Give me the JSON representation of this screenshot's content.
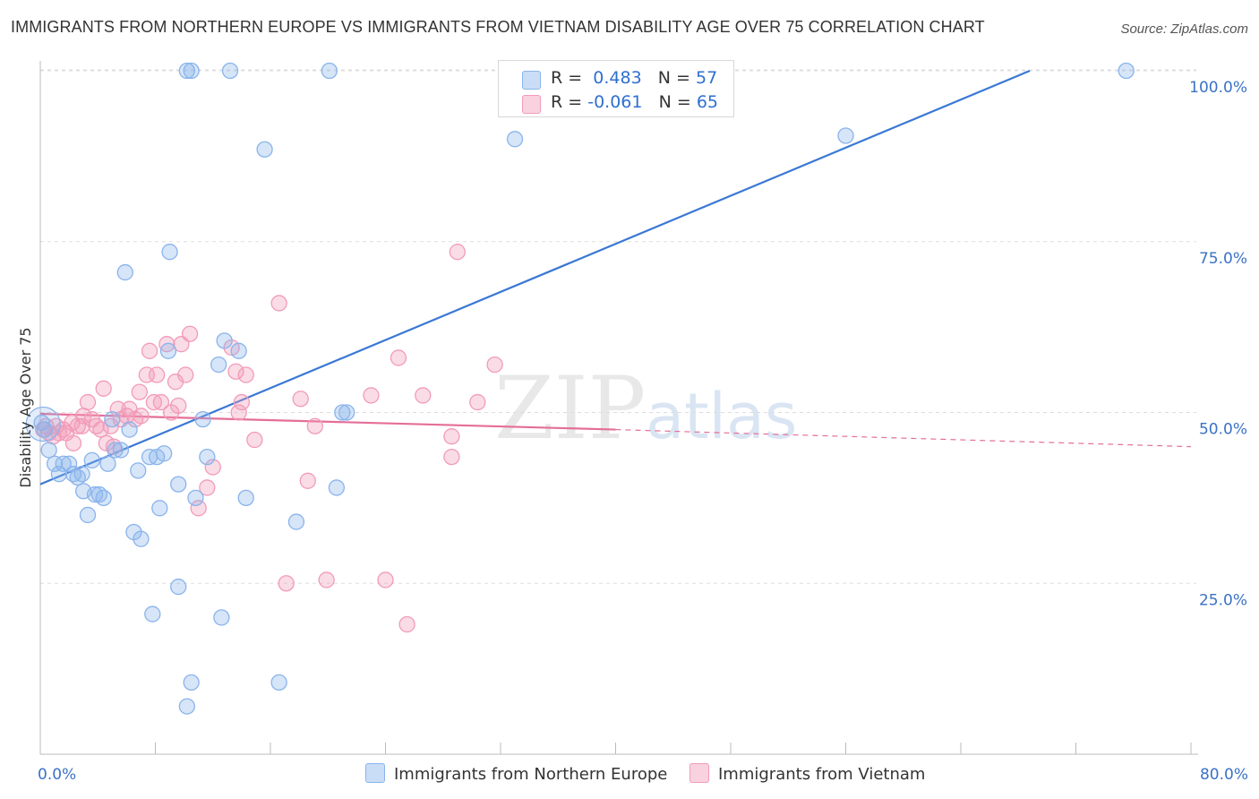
{
  "header": {
    "title": "IMMIGRANTS FROM NORTHERN EUROPE VS IMMIGRANTS FROM VIETNAM DISABILITY AGE OVER 75 CORRELATION CHART",
    "source": "Source: ZipAtlas.com"
  },
  "watermark": {
    "zip": "ZIP",
    "atlas": "atlas"
  },
  "legend": {
    "r_label": "R =",
    "n_label": "N =",
    "series": [
      {
        "name": "Immigrants from Northern Europe",
        "r": "0.483",
        "n": "57",
        "color": "#8ab4ec",
        "fill": "rgba(138,180,236,0.35)"
      },
      {
        "name": "Immigrants from Vietnam",
        "r": "-0.061",
        "n": "65",
        "color": "#f29bb8",
        "fill": "rgba(242,155,184,0.35)"
      }
    ]
  },
  "chart_data": {
    "type": "scatter",
    "title": "IMMIGRANTS FROM NORTHERN EUROPE VS IMMIGRANTS FROM VIETNAM DISABILITY AGE OVER 75 CORRELATION CHART",
    "xlabel": "",
    "ylabel": "Disability Age Over 75",
    "xlim": [
      0,
      80
    ],
    "ylim": [
      0,
      102
    ],
    "x_tick_labels": [
      "0.0%",
      "80.0%"
    ],
    "y_ticks": [
      25,
      50,
      75,
      100
    ],
    "y_tick_labels": [
      "25.0%",
      "50.0%",
      "75.0%",
      "100.0%"
    ],
    "grid": true,
    "series": [
      {
        "name": "Immigrants from Northern Europe",
        "color": "#3a78d4",
        "trend": {
          "x": [
            0,
            68.8
          ],
          "y": [
            39.5,
            100
          ]
        },
        "points": [
          [
            0.3,
            47.5
          ],
          [
            0.6,
            44.5
          ],
          [
            1.0,
            42.5
          ],
          [
            1.3,
            41
          ],
          [
            1.6,
            42.5
          ],
          [
            2.0,
            42.5
          ],
          [
            2.3,
            41
          ],
          [
            2.6,
            40.5
          ],
          [
            2.9,
            41
          ],
          [
            3.0,
            38.5
          ],
          [
            3.3,
            35
          ],
          [
            3.6,
            43
          ],
          [
            3.8,
            38
          ],
          [
            4.1,
            38
          ],
          [
            4.4,
            37.5
          ],
          [
            4.7,
            42.5
          ],
          [
            5.0,
            49
          ],
          [
            5.2,
            44.5
          ],
          [
            5.6,
            44.5
          ],
          [
            5.9,
            70.5
          ],
          [
            6.2,
            47.5
          ],
          [
            6.5,
            32.5
          ],
          [
            6.8,
            41.5
          ],
          [
            7.0,
            31.5
          ],
          [
            7.6,
            43.5
          ],
          [
            7.8,
            20.5
          ],
          [
            8.1,
            43.5
          ],
          [
            8.3,
            36
          ],
          [
            8.6,
            44
          ],
          [
            8.9,
            59
          ],
          [
            9.0,
            73.5
          ],
          [
            9.6,
            39.5
          ],
          [
            9.6,
            24.5
          ],
          [
            10.2,
            7
          ],
          [
            10.2,
            100
          ],
          [
            10.5,
            100
          ],
          [
            10.5,
            10.5
          ],
          [
            10.8,
            37.5
          ],
          [
            11.3,
            49
          ],
          [
            11.6,
            43.5
          ],
          [
            12.4,
            57
          ],
          [
            12.6,
            20
          ],
          [
            12.8,
            60.5
          ],
          [
            13.2,
            100
          ],
          [
            13.8,
            59
          ],
          [
            14.3,
            37.5
          ],
          [
            15.6,
            88.5
          ],
          [
            16.6,
            10.5
          ],
          [
            17.8,
            34
          ],
          [
            20.1,
            100
          ],
          [
            20.6,
            39
          ],
          [
            21.0,
            50
          ],
          [
            21.3,
            50
          ],
          [
            33.0,
            90
          ],
          [
            56.0,
            90.5
          ],
          [
            75.5,
            100
          ],
          [
            0.1,
            48.5
          ]
        ]
      },
      {
        "name": "Immigrants from Vietnam",
        "color": "#e56e98",
        "trend_solid": {
          "x": [
            0,
            40
          ],
          "y": [
            49.8,
            47.5
          ]
        },
        "trend_dashed": {
          "x": [
            40,
            80
          ],
          "y": [
            47.5,
            45
          ]
        },
        "points": [
          [
            0.2,
            47.5
          ],
          [
            0.4,
            48
          ],
          [
            0.6,
            47
          ],
          [
            0.9,
            46.5
          ],
          [
            1.1,
            48
          ],
          [
            1.3,
            47
          ],
          [
            1.6,
            47.5
          ],
          [
            1.8,
            47
          ],
          [
            2.2,
            48.5
          ],
          [
            2.3,
            45.5
          ],
          [
            2.6,
            48
          ],
          [
            2.9,
            48
          ],
          [
            3.0,
            49.5
          ],
          [
            3.3,
            51.5
          ],
          [
            3.6,
            49
          ],
          [
            3.9,
            48
          ],
          [
            4.2,
            47.5
          ],
          [
            4.4,
            53.5
          ],
          [
            4.6,
            45.5
          ],
          [
            4.9,
            48
          ],
          [
            5.1,
            45
          ],
          [
            5.4,
            50.5
          ],
          [
            5.6,
            49
          ],
          [
            6.0,
            49.5
          ],
          [
            6.2,
            50.5
          ],
          [
            6.6,
            49
          ],
          [
            6.9,
            53
          ],
          [
            7.0,
            49.5
          ],
          [
            7.4,
            55.5
          ],
          [
            7.6,
            59
          ],
          [
            7.9,
            51.5
          ],
          [
            8.1,
            55.5
          ],
          [
            8.4,
            51.5
          ],
          [
            8.8,
            60
          ],
          [
            9.1,
            50
          ],
          [
            9.4,
            54.5
          ],
          [
            9.6,
            51
          ],
          [
            9.8,
            60
          ],
          [
            10.1,
            55.5
          ],
          [
            10.4,
            61.5
          ],
          [
            11.0,
            36
          ],
          [
            11.6,
            39
          ],
          [
            12.0,
            42
          ],
          [
            13.3,
            59.5
          ],
          [
            13.6,
            56
          ],
          [
            13.8,
            50
          ],
          [
            14.0,
            51.5
          ],
          [
            14.3,
            55.5
          ],
          [
            14.9,
            46
          ],
          [
            16.6,
            66
          ],
          [
            17.1,
            25
          ],
          [
            18.1,
            52
          ],
          [
            18.6,
            40
          ],
          [
            19.1,
            48
          ],
          [
            19.9,
            25.5
          ],
          [
            23.0,
            52.5
          ],
          [
            24.0,
            25.5
          ],
          [
            24.9,
            58
          ],
          [
            25.5,
            19
          ],
          [
            26.6,
            52.5
          ],
          [
            28.6,
            46.5
          ],
          [
            28.6,
            43.5
          ],
          [
            29.0,
            73.5
          ],
          [
            30.4,
            51.5
          ],
          [
            31.6,
            57
          ]
        ]
      }
    ]
  }
}
